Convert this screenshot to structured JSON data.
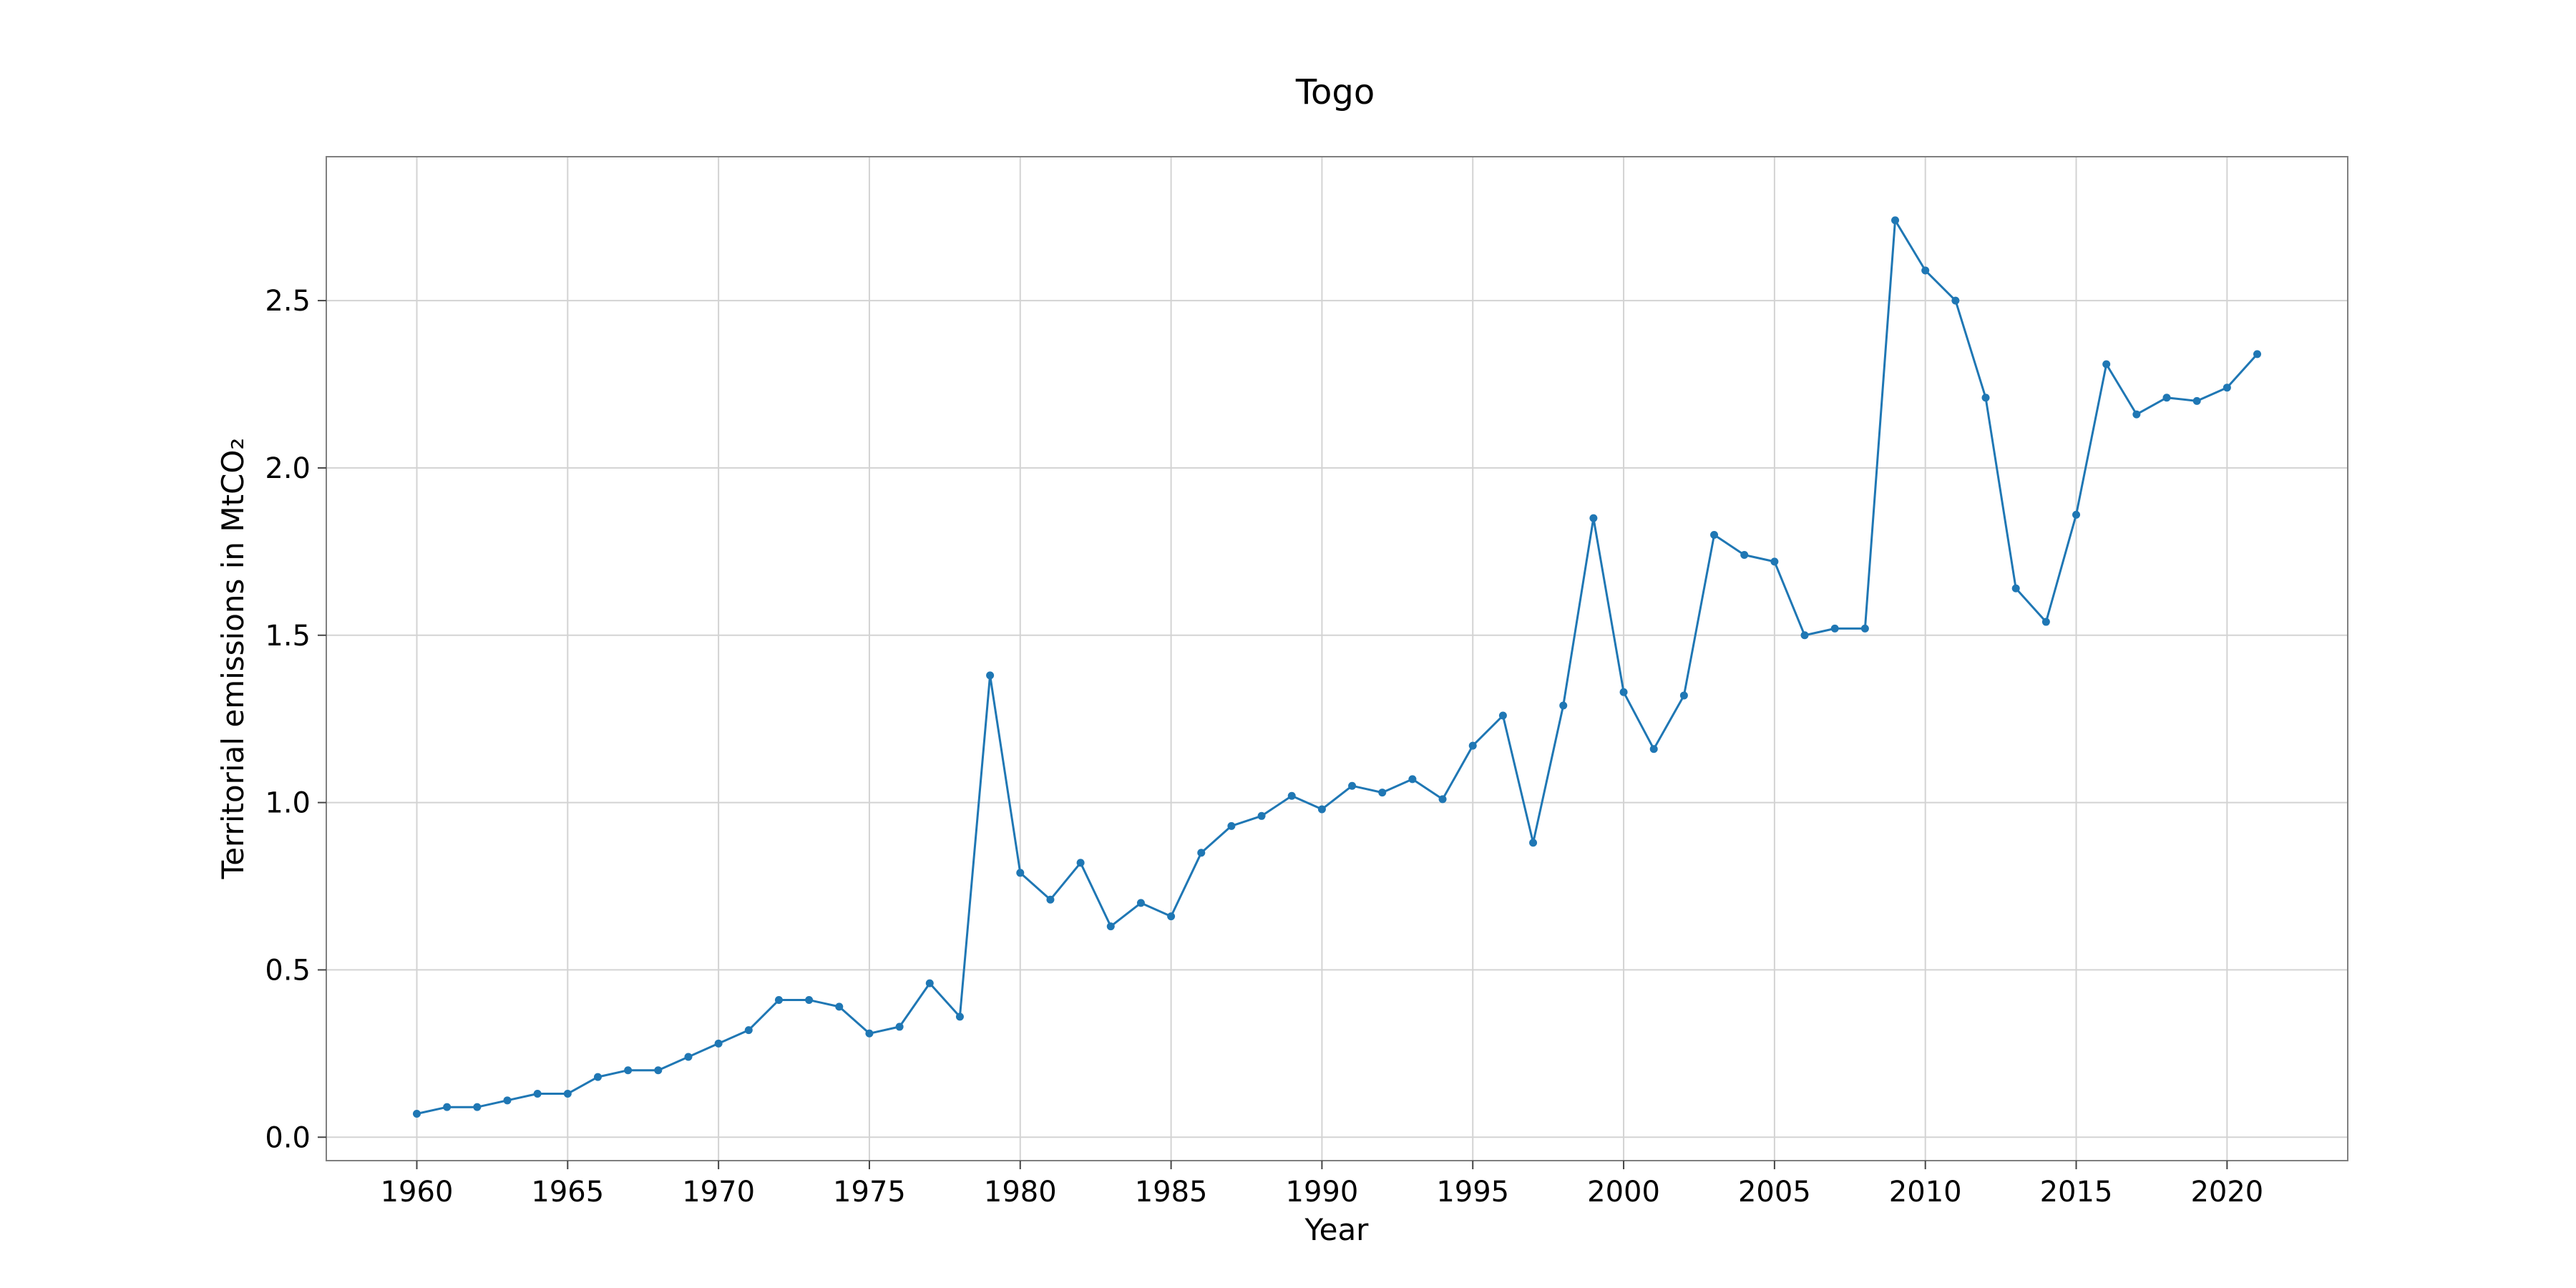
{
  "chart_data": {
    "type": "line",
    "title": "Togo",
    "xlabel": "Year",
    "ylabel": "Territorial emissions in MtCO₂",
    "xlim": [
      1957,
      2024
    ],
    "ylim": [
      -0.07,
      2.93
    ],
    "x_ticks": [
      1960,
      1965,
      1970,
      1975,
      1980,
      1985,
      1990,
      1995,
      2000,
      2005,
      2010,
      2015,
      2020
    ],
    "y_ticks": [
      0.0,
      0.5,
      1.0,
      1.5,
      2.0,
      2.5
    ],
    "y_tick_labels": [
      "0.0",
      "0.5",
      "1.0",
      "1.5",
      "2.0",
      "2.5"
    ],
    "grid": true,
    "colors": {
      "series": "#1f77b4"
    },
    "series": [
      {
        "name": "Togo",
        "x": [
          1960,
          1961,
          1962,
          1963,
          1964,
          1965,
          1966,
          1967,
          1968,
          1969,
          1970,
          1971,
          1972,
          1973,
          1974,
          1975,
          1976,
          1977,
          1978,
          1979,
          1980,
          1981,
          1982,
          1983,
          1984,
          1985,
          1986,
          1987,
          1988,
          1989,
          1990,
          1991,
          1992,
          1993,
          1994,
          1995,
          1996,
          1997,
          1998,
          1999,
          2000,
          2001,
          2002,
          2003,
          2004,
          2005,
          2006,
          2007,
          2008,
          2009,
          2010,
          2011,
          2012,
          2013,
          2014,
          2015,
          2016,
          2017,
          2018,
          2019,
          2020,
          2021
        ],
        "y": [
          0.07,
          0.09,
          0.09,
          0.11,
          0.13,
          0.13,
          0.18,
          0.2,
          0.2,
          0.24,
          0.28,
          0.32,
          0.41,
          0.41,
          0.39,
          0.31,
          0.33,
          0.46,
          0.36,
          1.38,
          0.79,
          0.71,
          0.82,
          0.63,
          0.7,
          0.66,
          0.85,
          0.93,
          0.96,
          1.02,
          0.98,
          1.05,
          1.03,
          1.07,
          1.01,
          1.17,
          1.26,
          0.88,
          1.29,
          1.85,
          1.33,
          1.16,
          1.32,
          1.8,
          1.74,
          1.72,
          1.5,
          1.52,
          1.52,
          2.74,
          2.59,
          2.5,
          2.21,
          1.64,
          1.54,
          1.86,
          2.31,
          2.16,
          2.21,
          2.2,
          2.24,
          2.34
        ]
      }
    ]
  }
}
